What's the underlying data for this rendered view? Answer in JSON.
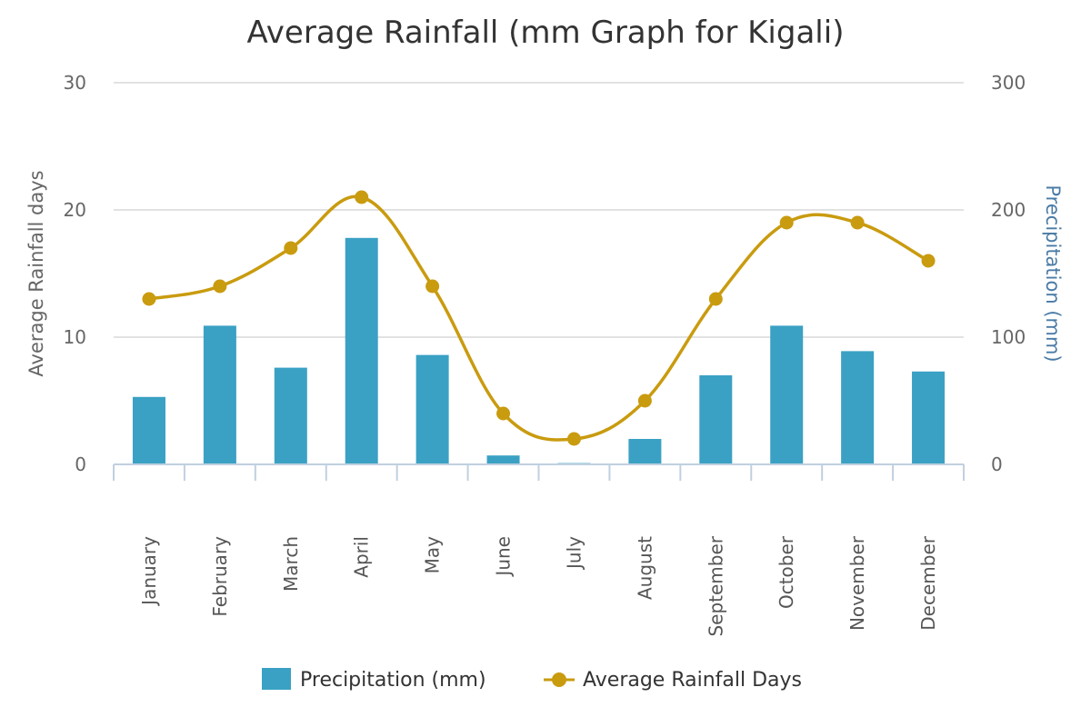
{
  "chart_data": {
    "type": "bar",
    "title": "Average Rainfall (mm Graph for Kigali)",
    "categories": [
      "January",
      "February",
      "March",
      "April",
      "May",
      "June",
      "July",
      "August",
      "September",
      "October",
      "November",
      "December"
    ],
    "series": [
      {
        "name": "Precipitation (mm)",
        "type": "bar",
        "axis": "right",
        "color": "#3aa1c4",
        "values": [
          53,
          109,
          76,
          178,
          86,
          7,
          1,
          20,
          70,
          109,
          89,
          73
        ]
      },
      {
        "name": "Average Rainfall Days",
        "type": "line",
        "axis": "left",
        "color": "#c99b0f",
        "values": [
          13,
          14,
          17,
          21,
          14,
          4,
          2,
          5,
          13,
          19,
          19,
          16
        ]
      }
    ],
    "left_axis": {
      "label": "Average Rainfall days",
      "range": [
        0,
        30
      ],
      "ticks": [
        "0",
        "10",
        "20",
        "30"
      ]
    },
    "right_axis": {
      "label": "Precipitation (mm)",
      "range": [
        0,
        300
      ],
      "ticks": [
        "0",
        "100",
        "200",
        "300"
      ]
    },
    "grid": true,
    "legend_position": "bottom-center"
  }
}
